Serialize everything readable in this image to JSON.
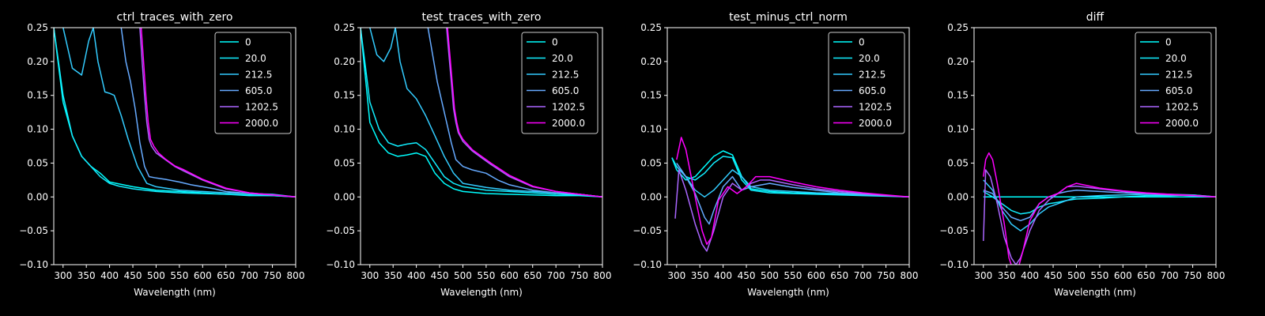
{
  "chart_data": [
    {
      "type": "line",
      "title": "ctrl_traces_with_zero",
      "xlabel": "Wavelength (nm)",
      "ylabel": "",
      "xlim": [
        280,
        800
      ],
      "ylim": [
        -0.1,
        0.25
      ],
      "xticks": [
        300,
        350,
        400,
        450,
        500,
        550,
        600,
        650,
        700,
        750,
        800
      ],
      "yticks": [
        -0.1,
        -0.05,
        0.0,
        0.05,
        0.1,
        0.15,
        0.2,
        0.25
      ],
      "legend_position": "top-right",
      "series": [
        {
          "name": "0",
          "color": "#00ffff",
          "x": [
            280,
            300,
            320,
            340,
            360,
            380,
            400,
            450,
            500,
            550,
            600,
            650,
            700,
            750,
            800
          ],
          "y": [
            0.25,
            0.14,
            0.09,
            0.06,
            0.045,
            0.035,
            0.022,
            0.015,
            0.01,
            0.008,
            0.006,
            0.004,
            0.003,
            0.002,
            0.0
          ]
        },
        {
          "name": "20.0",
          "color": "#11eeff",
          "x": [
            280,
            290,
            300,
            320,
            340,
            360,
            380,
            400,
            420,
            450,
            500,
            550,
            600,
            650,
            700,
            750,
            800
          ],
          "y": [
            0.25,
            0.2,
            0.15,
            0.09,
            0.06,
            0.045,
            0.03,
            0.02,
            0.016,
            0.012,
            0.008,
            0.006,
            0.005,
            0.004,
            0.002,
            0.002,
            0.0
          ]
        },
        {
          "name": "212.5",
          "color": "#33ccff",
          "x": [
            300,
            320,
            340,
            355,
            365,
            375,
            390,
            400,
            410,
            425,
            440,
            460,
            480,
            500,
            550,
            600,
            650,
            700,
            750,
            800
          ],
          "y": [
            0.25,
            0.19,
            0.18,
            0.23,
            0.25,
            0.2,
            0.155,
            0.153,
            0.15,
            0.12,
            0.085,
            0.045,
            0.02,
            0.015,
            0.01,
            0.008,
            0.006,
            0.005,
            0.004,
            0.0
          ]
        },
        {
          "name": "605.0",
          "color": "#66aaff",
          "x": [
            425,
            435,
            445,
            455,
            465,
            475,
            485,
            500,
            520,
            550,
            575,
            600,
            625,
            650,
            700,
            750,
            800
          ],
          "y": [
            0.25,
            0.2,
            0.17,
            0.13,
            0.08,
            0.045,
            0.03,
            0.028,
            0.026,
            0.022,
            0.018,
            0.015,
            0.012,
            0.008,
            0.005,
            0.003,
            0.0
          ]
        },
        {
          "name": "1202.5",
          "color": "#aa66ff",
          "x": [
            465,
            470,
            475,
            480,
            485,
            490,
            500,
            520,
            540,
            560,
            600,
            650,
            700,
            750,
            800
          ],
          "y": [
            0.25,
            0.2,
            0.15,
            0.11,
            0.085,
            0.075,
            0.065,
            0.055,
            0.045,
            0.038,
            0.025,
            0.012,
            0.006,
            0.003,
            0.0
          ]
        },
        {
          "name": "2000.0",
          "color": "#ff00ff",
          "x": [
            468,
            473,
            478,
            483,
            488,
            495,
            505,
            520,
            540,
            560,
            600,
            650,
            700,
            750,
            800
          ],
          "y": [
            0.25,
            0.2,
            0.15,
            0.11,
            0.085,
            0.075,
            0.065,
            0.056,
            0.046,
            0.04,
            0.026,
            0.013,
            0.006,
            0.003,
            0.0
          ]
        }
      ]
    },
    {
      "type": "line",
      "title": "test_traces_with_zero",
      "xlabel": "Wavelength (nm)",
      "ylabel": "",
      "xlim": [
        280,
        800
      ],
      "ylim": [
        -0.1,
        0.25
      ],
      "xticks": [
        300,
        350,
        400,
        450,
        500,
        550,
        600,
        650,
        700,
        750,
        800
      ],
      "yticks": [
        -0.1,
        -0.05,
        0.0,
        0.05,
        0.1,
        0.15,
        0.2,
        0.25
      ],
      "legend_position": "top-right",
      "series": [
        {
          "name": "0",
          "color": "#00ffff",
          "x": [
            280,
            300,
            320,
            340,
            360,
            380,
            400,
            420,
            440,
            460,
            480,
            500,
            550,
            600,
            650,
            700,
            750,
            800
          ],
          "y": [
            0.25,
            0.11,
            0.08,
            0.065,
            0.06,
            0.062,
            0.065,
            0.06,
            0.035,
            0.02,
            0.012,
            0.008,
            0.005,
            0.004,
            0.003,
            0.002,
            0.002,
            0.0
          ]
        },
        {
          "name": "20.0",
          "color": "#11eeff",
          "x": [
            280,
            300,
            320,
            340,
            360,
            380,
            400,
            420,
            440,
            460,
            480,
            500,
            550,
            600,
            650,
            700,
            750,
            800
          ],
          "y": [
            0.25,
            0.14,
            0.1,
            0.08,
            0.075,
            0.078,
            0.08,
            0.07,
            0.05,
            0.03,
            0.02,
            0.015,
            0.01,
            0.008,
            0.006,
            0.004,
            0.003,
            0.0
          ]
        },
        {
          "name": "212.5",
          "color": "#33ccff",
          "x": [
            300,
            315,
            330,
            345,
            355,
            365,
            380,
            400,
            420,
            440,
            460,
            480,
            500,
            550,
            600,
            650,
            700,
            750,
            800
          ],
          "y": [
            0.25,
            0.21,
            0.2,
            0.22,
            0.25,
            0.2,
            0.16,
            0.145,
            0.12,
            0.09,
            0.06,
            0.035,
            0.02,
            0.014,
            0.01,
            0.008,
            0.006,
            0.004,
            0.0
          ]
        },
        {
          "name": "605.0",
          "color": "#66aaff",
          "x": [
            425,
            435,
            445,
            455,
            465,
            475,
            485,
            500,
            520,
            550,
            575,
            600,
            625,
            650,
            700,
            750,
            800
          ],
          "y": [
            0.25,
            0.21,
            0.17,
            0.14,
            0.11,
            0.08,
            0.055,
            0.045,
            0.04,
            0.035,
            0.025,
            0.018,
            0.014,
            0.01,
            0.006,
            0.004,
            0.0
          ]
        },
        {
          "name": "1202.5",
          "color": "#aa66ff",
          "x": [
            465,
            470,
            475,
            480,
            485,
            490,
            500,
            520,
            540,
            560,
            600,
            650,
            700,
            750,
            800
          ],
          "y": [
            0.25,
            0.21,
            0.17,
            0.13,
            0.11,
            0.095,
            0.082,
            0.068,
            0.058,
            0.048,
            0.03,
            0.015,
            0.008,
            0.004,
            0.0
          ]
        },
        {
          "name": "2000.0",
          "color": "#ff00ff",
          "x": [
            467,
            472,
            477,
            482,
            487,
            492,
            500,
            520,
            540,
            560,
            600,
            650,
            700,
            750,
            800
          ],
          "y": [
            0.25,
            0.21,
            0.17,
            0.13,
            0.11,
            0.095,
            0.085,
            0.07,
            0.06,
            0.05,
            0.032,
            0.016,
            0.008,
            0.004,
            0.0
          ]
        }
      ]
    },
    {
      "type": "line",
      "title": "test_minus_ctrl_norm",
      "xlabel": "Wavelength (nm)",
      "ylabel": "",
      "xlim": [
        280,
        800
      ],
      "ylim": [
        -0.1,
        0.25
      ],
      "xticks": [
        300,
        350,
        400,
        450,
        500,
        550,
        600,
        650,
        700,
        750,
        800
      ],
      "yticks": [
        -0.1,
        -0.05,
        0.0,
        0.05,
        0.1,
        0.15,
        0.2,
        0.25
      ],
      "legend_position": "top-right",
      "series": [
        {
          "name": "0",
          "color": "#00ffff",
          "x": [
            290,
            300,
            320,
            340,
            360,
            380,
            400,
            420,
            440,
            460,
            500,
            550,
            600,
            650,
            700,
            750,
            800
          ],
          "y": [
            0.058,
            0.04,
            0.025,
            0.03,
            0.045,
            0.06,
            0.068,
            0.062,
            0.03,
            0.012,
            0.008,
            0.006,
            0.005,
            0.004,
            0.003,
            0.002,
            0.0
          ]
        },
        {
          "name": "20.0",
          "color": "#11eeff",
          "x": [
            290,
            300,
            320,
            340,
            360,
            380,
            400,
            420,
            440,
            460,
            500,
            550,
            600,
            650,
            700,
            750,
            800
          ],
          "y": [
            0.058,
            0.045,
            0.03,
            0.025,
            0.035,
            0.05,
            0.06,
            0.058,
            0.025,
            0.01,
            0.006,
            0.005,
            0.004,
            0.003,
            0.002,
            0.001,
            0.0
          ]
        },
        {
          "name": "212.5",
          "color": "#33ccff",
          "x": [
            300,
            320,
            340,
            360,
            380,
            400,
            420,
            440,
            460,
            500,
            550,
            600,
            650,
            700,
            750,
            800
          ],
          "y": [
            0.045,
            0.03,
            0.01,
            0.0,
            0.01,
            0.025,
            0.04,
            0.03,
            0.015,
            0.01,
            0.008,
            0.006,
            0.005,
            0.003,
            0.002,
            0.0
          ]
        },
        {
          "name": "605.0",
          "color": "#66aaff",
          "x": [
            300,
            320,
            340,
            360,
            370,
            380,
            400,
            420,
            440,
            460,
            500,
            550,
            600,
            650,
            700,
            750,
            800
          ],
          "y": [
            0.05,
            0.03,
            0.005,
            -0.03,
            -0.04,
            -0.02,
            0.015,
            0.03,
            0.01,
            0.015,
            0.02,
            0.014,
            0.01,
            0.006,
            0.004,
            0.002,
            0.0
          ]
        },
        {
          "name": "1202.5",
          "color": "#aa66ff",
          "x": [
            297,
            305,
            320,
            340,
            355,
            365,
            380,
            400,
            420,
            440,
            460,
            480,
            500,
            550,
            600,
            650,
            700,
            750,
            800
          ],
          "y": [
            -0.032,
            0.04,
            0.01,
            -0.04,
            -0.07,
            -0.08,
            -0.05,
            0.0,
            0.02,
            0.01,
            0.02,
            0.025,
            0.025,
            0.018,
            0.012,
            0.008,
            0.005,
            0.002,
            0.0
          ]
        },
        {
          "name": "2000.0",
          "color": "#ff00ff",
          "x": [
            300,
            310,
            320,
            340,
            355,
            365,
            375,
            390,
            410,
            430,
            450,
            470,
            500,
            550,
            600,
            650,
            700,
            750,
            800
          ],
          "y": [
            0.055,
            0.088,
            0.07,
            0.0,
            -0.05,
            -0.07,
            -0.06,
            -0.005,
            0.015,
            0.005,
            0.015,
            0.03,
            0.03,
            0.022,
            0.015,
            0.01,
            0.006,
            0.003,
            0.0
          ]
        }
      ]
    },
    {
      "type": "line",
      "title": "diff",
      "xlabel": "Wavelength (nm)",
      "ylabel": "",
      "xlim": [
        280,
        800
      ],
      "ylim": [
        -0.1,
        0.25
      ],
      "xticks": [
        300,
        350,
        400,
        450,
        500,
        550,
        600,
        650,
        700,
        750,
        800
      ],
      "yticks": [
        -0.1,
        -0.05,
        0.0,
        0.05,
        0.1,
        0.15,
        0.2,
        0.25
      ],
      "legend_position": "top-right",
      "series": [
        {
          "name": "0",
          "color": "#00ffff",
          "x": [
            300,
            800
          ],
          "y": [
            0.0,
            0.0
          ]
        },
        {
          "name": "20.0",
          "color": "#11eeff",
          "x": [
            300,
            320,
            340,
            360,
            380,
            400,
            420,
            440,
            460,
            480,
            500,
            550,
            600,
            650,
            700,
            750,
            800
          ],
          "y": [
            0.008,
            0.0,
            -0.01,
            -0.02,
            -0.025,
            -0.023,
            -0.015,
            -0.01,
            -0.008,
            -0.005,
            -0.003,
            -0.002,
            0.0,
            0.002,
            0.002,
            0.003,
            0.0
          ]
        },
        {
          "name": "212.5",
          "color": "#33ccff",
          "x": [
            300,
            320,
            340,
            360,
            380,
            400,
            420,
            440,
            460,
            480,
            500,
            550,
            600,
            650,
            700,
            750,
            800
          ],
          "y": [
            0.025,
            0.01,
            -0.02,
            -0.04,
            -0.05,
            -0.04,
            -0.025,
            -0.015,
            -0.01,
            -0.005,
            0.0,
            0.002,
            0.003,
            0.004,
            0.003,
            0.002,
            0.0
          ]
        },
        {
          "name": "605.0",
          "color": "#66aaff",
          "x": [
            300,
            320,
            340,
            360,
            380,
            400,
            420,
            440,
            460,
            480,
            500,
            550,
            600,
            650,
            700,
            750,
            800
          ],
          "y": [
            0.01,
            0.005,
            -0.015,
            -0.03,
            -0.035,
            -0.03,
            -0.01,
            0.0,
            0.005,
            0.008,
            0.01,
            0.008,
            0.006,
            0.005,
            0.004,
            0.003,
            0.0
          ]
        },
        {
          "name": "1202.5",
          "color": "#aa66ff",
          "x": [
            300,
            305,
            315,
            330,
            345,
            360,
            370,
            380,
            400,
            420,
            440,
            460,
            480,
            500,
            550,
            600,
            650,
            700,
            750,
            800
          ],
          "y": [
            -0.065,
            0.04,
            0.03,
            -0.01,
            -0.06,
            -0.09,
            -0.1,
            -0.09,
            -0.05,
            -0.02,
            -0.005,
            0.005,
            0.015,
            0.016,
            0.012,
            0.008,
            0.005,
            0.003,
            0.002,
            0.0
          ]
        },
        {
          "name": "2000.0",
          "color": "#ff00ff",
          "x": [
            300,
            305,
            312,
            320,
            330,
            345,
            355,
            365,
            375,
            385,
            400,
            420,
            440,
            460,
            480,
            500,
            550,
            600,
            650,
            700,
            750,
            800
          ],
          "y": [
            0.03,
            0.055,
            0.065,
            0.055,
            0.02,
            -0.04,
            -0.09,
            -0.11,
            -0.105,
            -0.08,
            -0.035,
            -0.01,
            0.0,
            0.005,
            0.015,
            0.02,
            0.013,
            0.009,
            0.006,
            0.004,
            0.002,
            0.0
          ]
        }
      ]
    }
  ]
}
